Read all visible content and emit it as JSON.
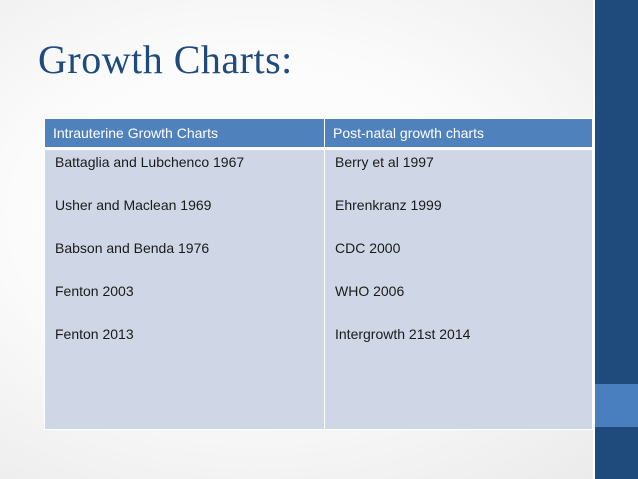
{
  "slide": {
    "title": "Growth Charts:"
  },
  "table": {
    "headers": [
      "Intrauterine Growth Charts",
      "Post-natal growth charts"
    ],
    "intrauterine": [
      "Battaglia and Lubchenco 1967",
      "Usher and Maclean 1969",
      "Babson and Benda 1976",
      "Fenton 2003",
      "Fenton 2013"
    ],
    "postnatal": [
      "Berry et al 1997",
      "Ehrenkranz 1999",
      "CDC 2000",
      "WHO 2006",
      "Intergrowth 21st 2014"
    ]
  },
  "colors": {
    "title": "#1f4a7c",
    "header_bg": "#4f81bd",
    "cell_bg": "#cfd7e6",
    "accent_dark": "#1f4a7c",
    "accent_mid": "#4a7fbf"
  }
}
